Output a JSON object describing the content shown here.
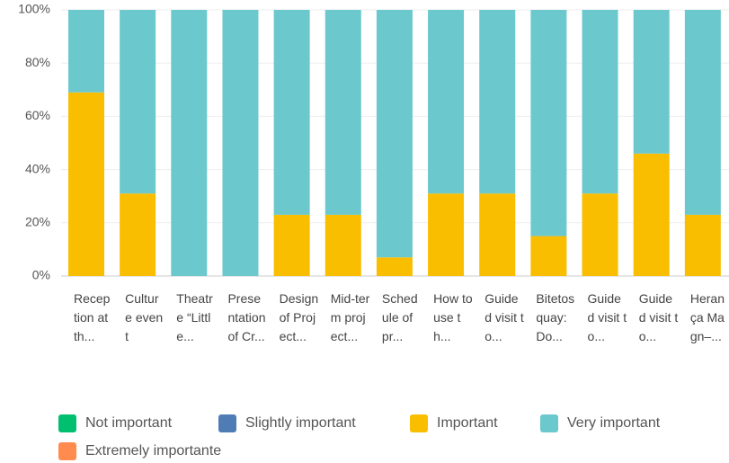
{
  "chart_data": {
    "type": "stacked_bar",
    "categories": [
      "Reception at th...",
      "Culture event",
      "Theatre “Little...",
      "Presentation of Cr...",
      "Design of Project...",
      "Mid-term project...",
      "Schedule of pr...",
      "How to use th...",
      "Guided visit to...",
      "Bitetos quay: Do...",
      "Guided visit to...",
      "Guided visit to...",
      "Herança Magn–..."
    ],
    "series": [
      {
        "name": "Not important",
        "color": "#00bf6f",
        "values": [
          0,
          0,
          0,
          0,
          0,
          0,
          0,
          0,
          0,
          0,
          0,
          0,
          0
        ]
      },
      {
        "name": "Slightly important",
        "color": "#507cb6",
        "values": [
          0,
          0,
          0,
          0,
          0,
          0,
          0,
          0,
          0,
          0,
          0,
          0,
          0
        ]
      },
      {
        "name": "Important",
        "color": "#f9be00",
        "values": [
          69,
          31,
          0,
          0,
          23,
          23,
          7,
          31,
          31,
          15,
          31,
          46,
          23
        ]
      },
      {
        "name": "Very important",
        "color": "#6bc8cd",
        "values": [
          31,
          69,
          100,
          100,
          77,
          77,
          93,
          69,
          69,
          85,
          69,
          54,
          77
        ]
      },
      {
        "name": "Extremely importante",
        "color": "#ff8b4f",
        "values": [
          0,
          0,
          0,
          0,
          0,
          0,
          0,
          0,
          0,
          0,
          0,
          0,
          0
        ]
      }
    ],
    "ylim": [
      0,
      100
    ],
    "yticks": [
      {
        "value": 0,
        "label": "0%"
      },
      {
        "value": 20,
        "label": "20%"
      },
      {
        "value": 40,
        "label": "40%"
      },
      {
        "value": 60,
        "label": "60%"
      },
      {
        "value": 80,
        "label": "80%"
      },
      {
        "value": 100,
        "label": "100%"
      }
    ],
    "grid": true
  }
}
